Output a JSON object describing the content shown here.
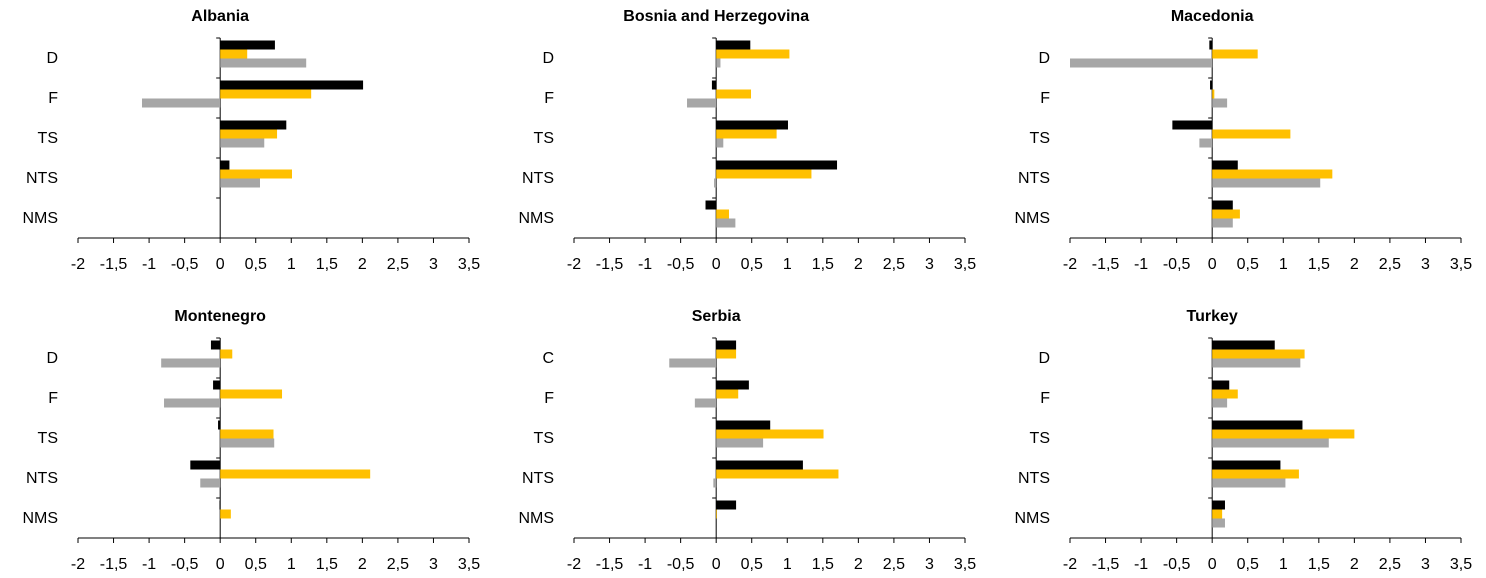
{
  "chart_data": [
    {
      "type": "bar",
      "orientation": "horizontal",
      "title": "Albania",
      "categories": [
        "D",
        "F",
        "TS",
        "NTS",
        "NMS"
      ],
      "series": [
        {
          "color": "#000000",
          "values": [
            0.77,
            2.01,
            0.93,
            0.13,
            null
          ]
        },
        {
          "color": "#ffc000",
          "values": [
            0.38,
            1.28,
            0.8,
            1.01,
            null
          ]
        },
        {
          "color": "#a6a6a6",
          "values": [
            1.21,
            -1.1,
            0.62,
            0.56,
            null
          ]
        }
      ],
      "xlim": [
        -2,
        3.5
      ],
      "xticks": [
        -2,
        {
          "value": -1.5,
          "label": "-1,5"
        },
        -1,
        {
          "value": -0.5,
          "label": "-0,5"
        },
        0,
        {
          "value": 0.5,
          "label": "0,5"
        },
        1,
        {
          "value": 1.5,
          "label": "1,5"
        },
        2,
        {
          "value": 2.5,
          "label": "2,5"
        },
        3,
        {
          "value": 3.5,
          "label": "3,5"
        }
      ]
    },
    {
      "type": "bar",
      "orientation": "horizontal",
      "title": "Bosnia and Herzegovina",
      "categories": [
        "D",
        "F",
        "TS",
        "NTS",
        "NMS"
      ],
      "series": [
        {
          "color": "#000000",
          "values": [
            0.48,
            -0.06,
            1.01,
            1.7,
            -0.15
          ]
        },
        {
          "color": "#ffc000",
          "values": [
            1.03,
            0.49,
            0.85,
            1.34,
            0.18
          ]
        },
        {
          "color": "#a6a6a6",
          "values": [
            0.06,
            -0.41,
            0.1,
            -0.03,
            0.27
          ]
        }
      ],
      "xlim": [
        -2,
        3.5
      ],
      "xticks": [
        -2,
        {
          "value": -1.5,
          "label": "-1,5"
        },
        -1,
        {
          "value": -0.5,
          "label": "-0,5"
        },
        0,
        {
          "value": 0.5,
          "label": "0,5"
        },
        1,
        {
          "value": 1.5,
          "label": "1,5"
        },
        2,
        {
          "value": 2.5,
          "label": "2,5"
        },
        3,
        {
          "value": 3.5,
          "label": "3,5"
        }
      ]
    },
    {
      "type": "bar",
      "orientation": "horizontal",
      "title": "Macedonia",
      "categories": [
        "D",
        "F",
        "TS",
        "NTS",
        "NMS"
      ],
      "series": [
        {
          "color": "#000000",
          "values": [
            -0.04,
            -0.03,
            -0.56,
            0.36,
            0.29
          ]
        },
        {
          "color": "#ffc000",
          "values": [
            0.64,
            0.03,
            1.1,
            1.69,
            0.39
          ]
        },
        {
          "color": "#a6a6a6",
          "values": [
            -2.0,
            0.21,
            -0.18,
            1.52,
            0.29
          ]
        }
      ],
      "xlim": [
        -2,
        3.5
      ],
      "xticks": [
        -2,
        {
          "value": -1.5,
          "label": "-1,5"
        },
        -1,
        {
          "value": -0.5,
          "label": "-0,5"
        },
        0,
        {
          "value": 0.5,
          "label": "0,5"
        },
        1,
        {
          "value": 1.5,
          "label": "1,5"
        },
        2,
        {
          "value": 2.5,
          "label": "2,5"
        },
        3,
        {
          "value": 3.5,
          "label": "3,5"
        }
      ]
    },
    {
      "type": "bar",
      "orientation": "horizontal",
      "title": "Montenegro",
      "categories": [
        "D",
        "F",
        "TS",
        "NTS",
        "NMS"
      ],
      "series": [
        {
          "color": "#000000",
          "values": [
            -0.13,
            -0.1,
            -0.03,
            -0.42,
            -0.01
          ]
        },
        {
          "color": "#ffc000",
          "values": [
            0.17,
            0.87,
            0.75,
            2.11,
            0.15
          ]
        },
        {
          "color": "#a6a6a6",
          "values": [
            -0.83,
            -0.79,
            0.76,
            -0.28,
            null
          ]
        }
      ],
      "xlim": [
        -2,
        3.5
      ],
      "xticks": [
        -2,
        {
          "value": -1.5,
          "label": "-1,5"
        },
        -1,
        {
          "value": -0.5,
          "label": "-0,5"
        },
        0,
        {
          "value": 0.5,
          "label": "0,5"
        },
        1,
        {
          "value": 1.5,
          "label": "1,5"
        },
        2,
        {
          "value": 2.5,
          "label": "2,5"
        },
        3,
        {
          "value": 3.5,
          "label": "3,5"
        }
      ]
    },
    {
      "type": "bar",
      "orientation": "horizontal",
      "title": "Serbia",
      "categories": [
        "C",
        "F",
        "TS",
        "NTS",
        "NMS"
      ],
      "series": [
        {
          "color": "#000000",
          "values": [
            0.28,
            0.46,
            0.76,
            1.22,
            0.28
          ]
        },
        {
          "color": "#ffc000",
          "values": [
            0.28,
            0.31,
            1.51,
            1.72,
            0.01
          ]
        },
        {
          "color": "#a6a6a6",
          "values": [
            -0.66,
            -0.3,
            0.66,
            -0.04,
            null
          ]
        }
      ],
      "xlim": [
        -2,
        3.5
      ],
      "xticks": [
        -2,
        {
          "value": -1.5,
          "label": "-1,5"
        },
        -1,
        {
          "value": -0.5,
          "label": "-0,5"
        },
        0,
        {
          "value": 0.5,
          "label": "0,5"
        },
        1,
        {
          "value": 1.5,
          "label": "1,5"
        },
        2,
        {
          "value": 2.5,
          "label": "2,5"
        },
        3,
        {
          "value": 3.5,
          "label": "3,5"
        }
      ]
    },
    {
      "type": "bar",
      "orientation": "horizontal",
      "title": "Turkey",
      "categories": [
        "D",
        "F",
        "TS",
        "NTS",
        "NMS"
      ],
      "series": [
        {
          "color": "#000000",
          "values": [
            0.88,
            0.24,
            1.27,
            0.96,
            0.18
          ]
        },
        {
          "color": "#ffc000",
          "values": [
            1.3,
            0.36,
            2.0,
            1.22,
            0.14
          ]
        },
        {
          "color": "#a6a6a6",
          "values": [
            1.24,
            0.21,
            1.64,
            1.03,
            0.18
          ]
        }
      ],
      "xlim": [
        -2,
        3.5
      ],
      "xticks": [
        -2,
        {
          "value": -1.5,
          "label": "-1,5"
        },
        -1,
        {
          "value": -0.5,
          "label": "-0,5"
        },
        0,
        {
          "value": 0.5,
          "label": "0,5"
        },
        1,
        {
          "value": 1.5,
          "label": "1,5"
        },
        2,
        {
          "value": 2.5,
          "label": "2,5"
        },
        3,
        {
          "value": 3.5,
          "label": "3,5"
        }
      ]
    }
  ]
}
